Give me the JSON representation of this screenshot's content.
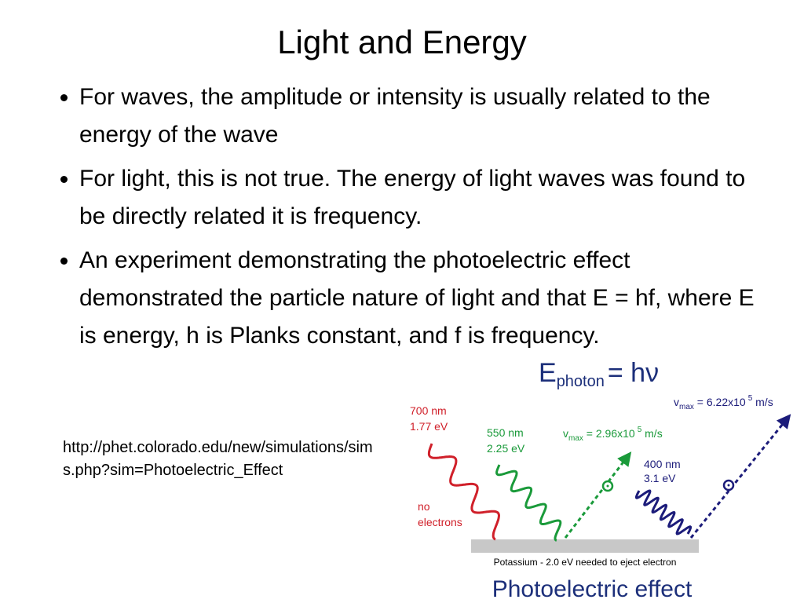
{
  "title": "Light and Energy",
  "bullets": [
    "For waves, the amplitude or intensity is usually related to the energy of the wave",
    "For light, this is not true. The energy of light waves was found to be directly related it is frequency.",
    "An experiment demonstrating the photoelectric effect demonstrated the particle nature of light and that E = hf, where E is energy, h is Planks constant, and f is frequency."
  ],
  "link": "http://phet.colorado.edu/new/simulations/sims.php?sim=Photoelectric_Effect",
  "diagram": {
    "formula": {
      "symbol": "E",
      "sub": "photon",
      "rest": "= hν"
    },
    "red": {
      "wavelength": "700 nm",
      "energy": "1.77 eV",
      "note": [
        "no",
        "electrons"
      ]
    },
    "green": {
      "wavelength": "550 nm",
      "energy": "2.25 eV",
      "speed": {
        "symbol": "v",
        "sub": "max",
        "value": " = 2.96x10",
        "exp": "5",
        "unit": " m/s"
      }
    },
    "blue": {
      "wavelength": "400 nm",
      "energy": "3.1 eV",
      "speed": {
        "symbol": "v",
        "sub": "max",
        "value": " = 6.22x10",
        "exp": "5",
        "unit": " m/s"
      }
    },
    "metal": "Potassium - 2.0 eV needed to eject electron",
    "caption": "Photoelectric effect"
  }
}
